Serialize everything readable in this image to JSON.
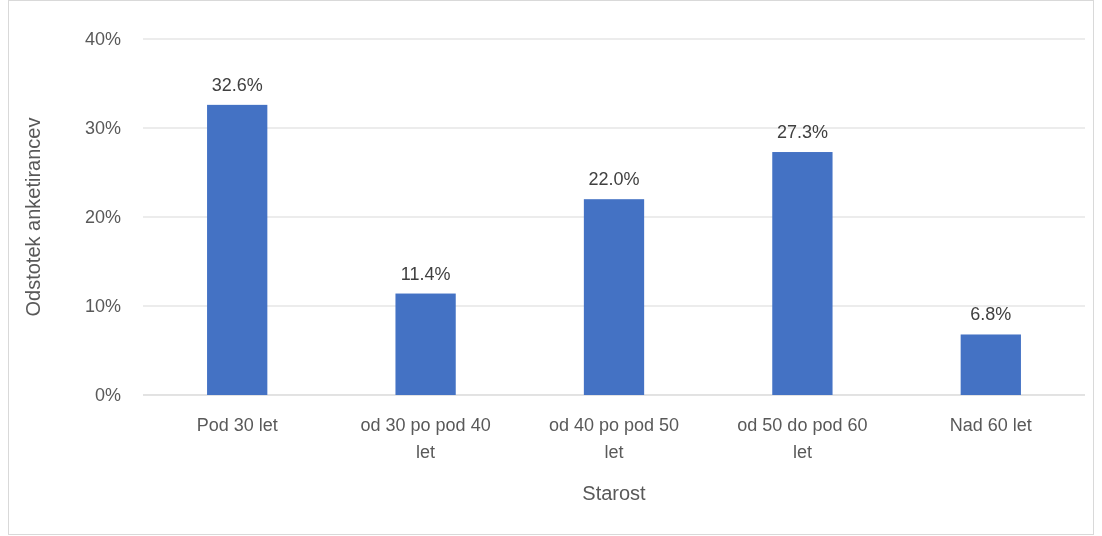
{
  "chart_data": {
    "type": "bar",
    "xlabel": "Starost",
    "ylabel": "Odstotek anketirancev",
    "categories": [
      "Pod 30 let",
      "od 30 po pod 40 let",
      "od 40 po pod 50 let",
      "od 50 do pod 60 let",
      "Nad 60 let"
    ],
    "values": [
      32.6,
      11.4,
      22.0,
      27.3,
      6.8
    ],
    "value_labels": [
      "32.6%",
      "11.4%",
      "22.0%",
      "27.3%",
      "6.8%"
    ],
    "color": "#4472c4",
    "ylim": [
      0,
      40
    ],
    "yticks": [
      {
        "value": 0,
        "label": "0%"
      },
      {
        "value": 10,
        "label": "10%"
      },
      {
        "value": 20,
        "label": "20%"
      },
      {
        "value": 30,
        "label": "30%"
      },
      {
        "value": 40,
        "label": "40%"
      }
    ],
    "grid": "y"
  }
}
